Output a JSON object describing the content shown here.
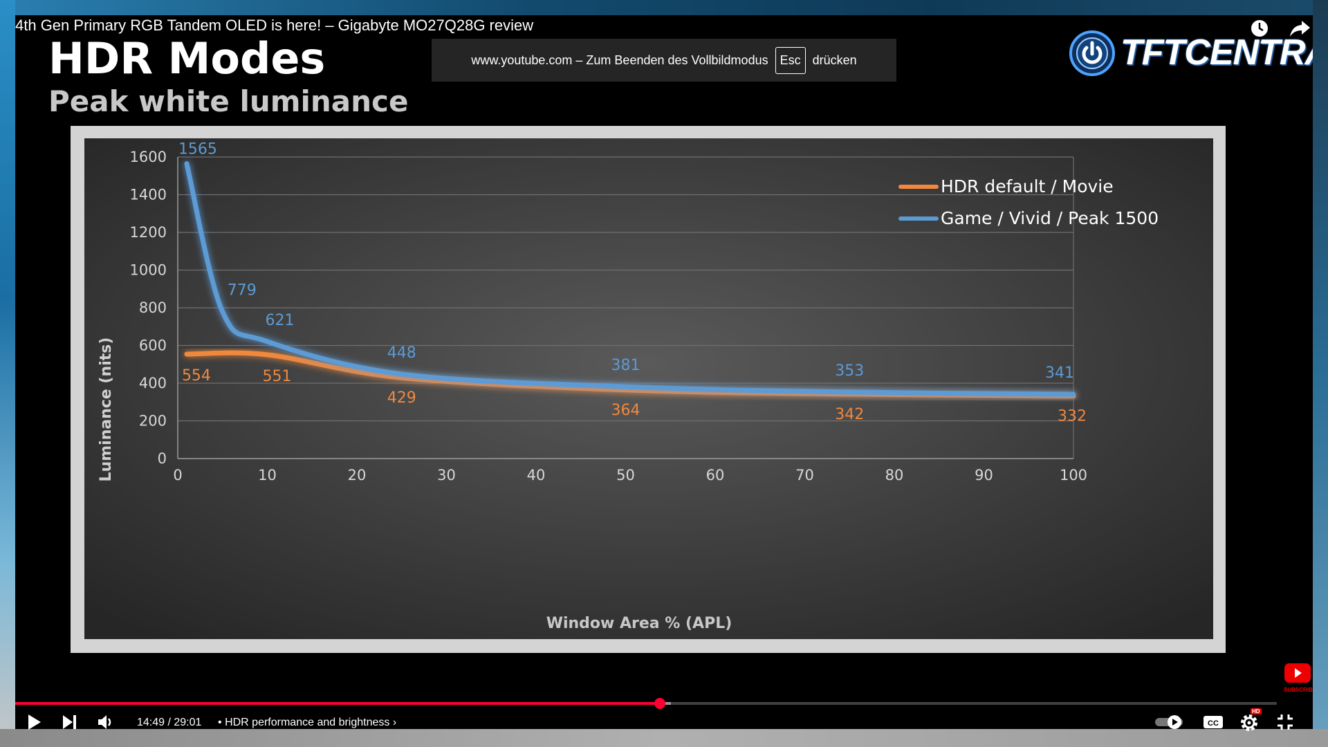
{
  "video": {
    "title": "4th Gen Primary RGB Tandem OLED is here! – Gigabyte MO27Q28G review"
  },
  "fullscreen_notice": {
    "prefix": "www.youtube.com – Zum Beenden des Vollbildmodus",
    "key": "Esc",
    "suffix": "drücken"
  },
  "slide": {
    "title": "HDR Modes",
    "subtitle": "Peak white luminance"
  },
  "logo": {
    "text": "TFTCENTRAL"
  },
  "player": {
    "time": "14:49 / 29:01",
    "separator": "•",
    "chapter": "HDR performance and brightness",
    "progress_fraction": 0.511,
    "buffered_fraction": 0.52,
    "accent_color": "#ff0033",
    "subscribe_label": "SUBSCRIBE",
    "hd_badge": "HD"
  },
  "icons": {
    "top": [
      "watch-later-icon",
      "share-icon"
    ],
    "controls_left": [
      "play-icon",
      "next-icon",
      "volume-icon"
    ],
    "controls_right": [
      "autoplay-toggle-icon",
      "subtitles-icon",
      "settings-icon",
      "exit-fullscreen-icon"
    ],
    "corner": "youtube-subscribe-icon"
  },
  "chart_data": {
    "type": "line",
    "xlabel": "Window Area % (APL)",
    "ylabel": "Luminance (nits)",
    "xlim": [
      0,
      100
    ],
    "ylim": [
      0,
      1600
    ],
    "xticks": [
      0,
      10,
      20,
      30,
      40,
      50,
      60,
      70,
      80,
      90,
      100
    ],
    "yticks": [
      0,
      200,
      400,
      600,
      800,
      1000,
      1200,
      1400,
      1600
    ],
    "grid": true,
    "legend_position": "top-right",
    "series": [
      {
        "name": "HDR default / Movie",
        "color": "#f0883e",
        "x": [
          1,
          10,
          25,
          50,
          75,
          100
        ],
        "y": [
          554,
          551,
          429,
          364,
          342,
          332
        ],
        "labels": [
          "554",
          "551",
          "429",
          "364",
          "342",
          "332"
        ]
      },
      {
        "name": "Game / Vivid / Peak 1500",
        "color": "#5b9bd5",
        "x": [
          1,
          5,
          10,
          25,
          50,
          75,
          100
        ],
        "y": [
          1565,
          779,
          621,
          448,
          381,
          353,
          341
        ],
        "labels": [
          "1565",
          "779",
          "621",
          "448",
          "381",
          "353",
          "341"
        ]
      }
    ]
  }
}
